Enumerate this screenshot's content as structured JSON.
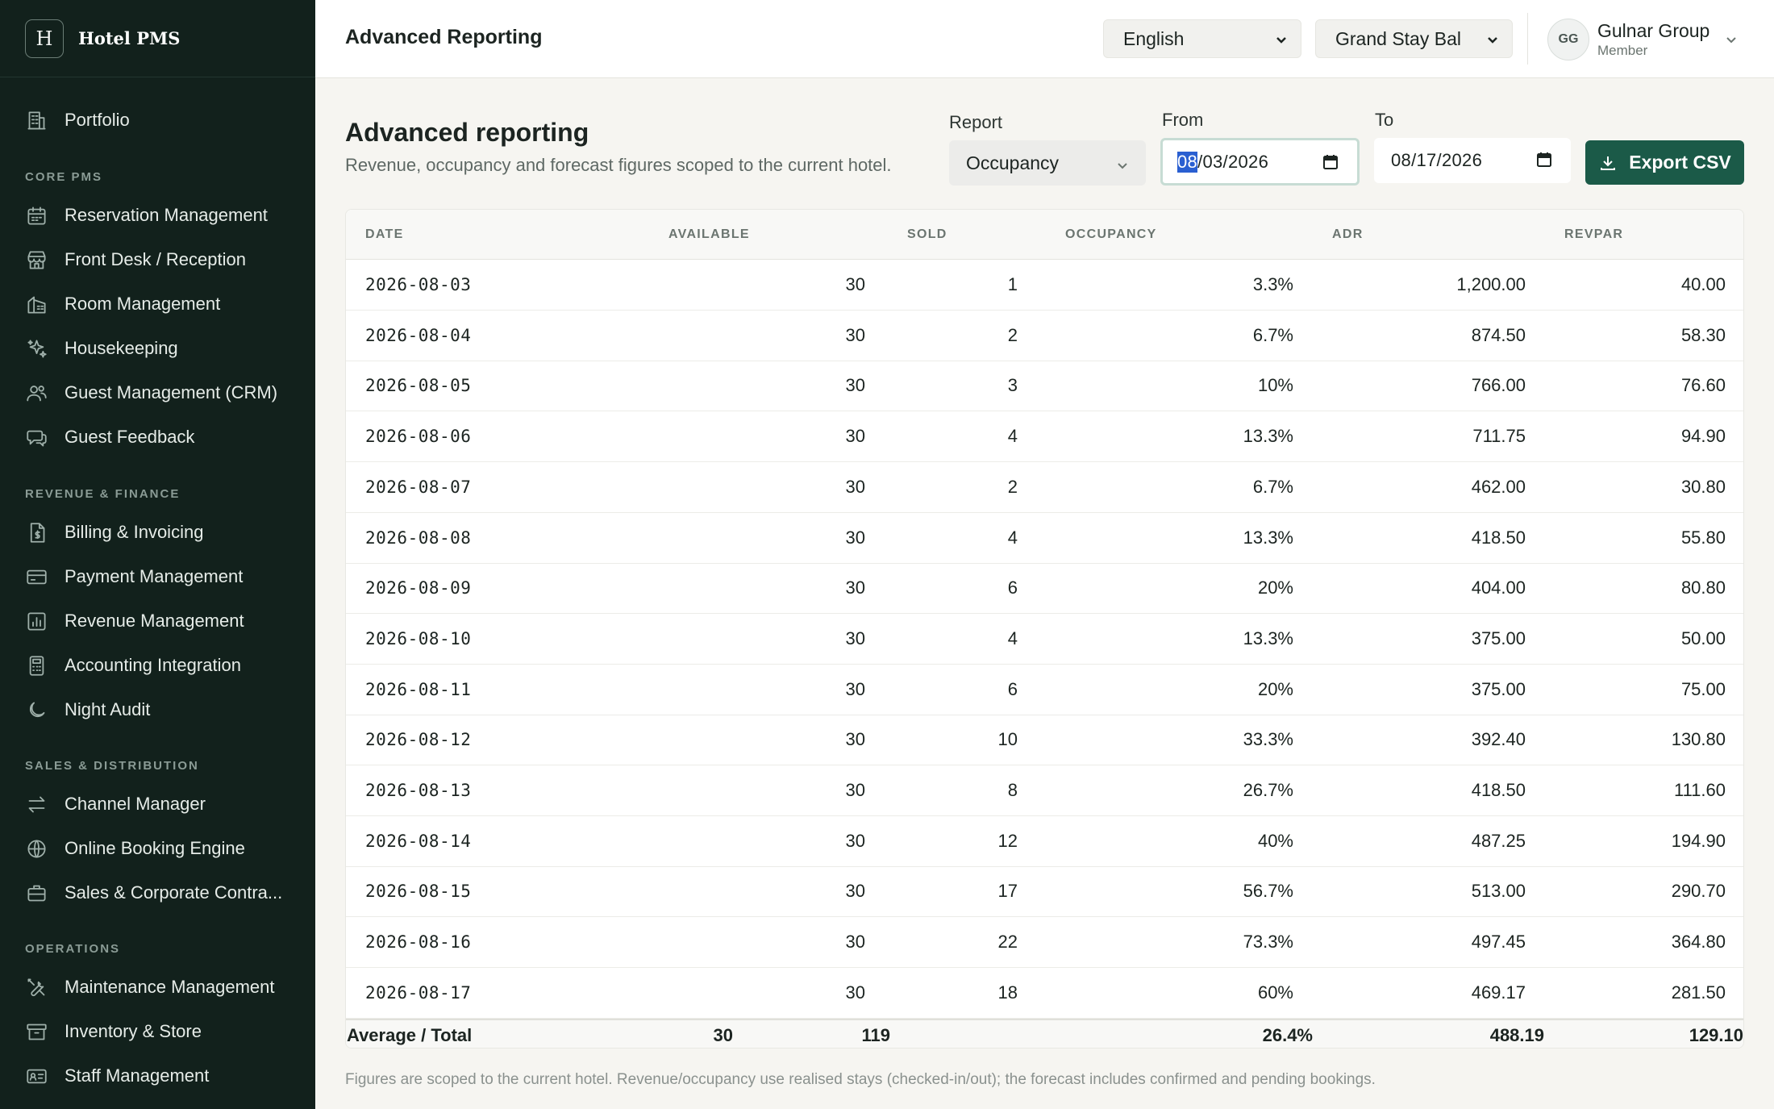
{
  "brand": {
    "logo_letter": "H",
    "name": "Hotel PMS"
  },
  "sidebar": {
    "portfolio": {
      "label": "Portfolio",
      "icon": "building-icon"
    },
    "sections": [
      {
        "title": "CORE PMS",
        "items": [
          {
            "label": "Reservation Management",
            "icon": "calendar-icon"
          },
          {
            "label": "Front Desk / Reception",
            "icon": "desk-icon"
          },
          {
            "label": "Room Management",
            "icon": "room-icon"
          },
          {
            "label": "Housekeeping",
            "icon": "sparkle-icon"
          },
          {
            "label": "Guest Management (CRM)",
            "icon": "users-icon"
          },
          {
            "label": "Guest Feedback",
            "icon": "chat-icon"
          }
        ]
      },
      {
        "title": "REVENUE & FINANCE",
        "items": [
          {
            "label": "Billing & Invoicing",
            "icon": "invoice-icon"
          },
          {
            "label": "Payment Management",
            "icon": "card-icon"
          },
          {
            "label": "Revenue Management",
            "icon": "bar-chart-icon"
          },
          {
            "label": "Accounting Integration",
            "icon": "calculator-icon"
          },
          {
            "label": "Night Audit",
            "icon": "moon-icon"
          }
        ]
      },
      {
        "title": "SALES & DISTRIBUTION",
        "items": [
          {
            "label": "Channel Manager",
            "icon": "arrows-icon"
          },
          {
            "label": "Online Booking Engine",
            "icon": "globe-icon"
          },
          {
            "label": "Sales & Corporate Contra...",
            "icon": "briefcase-icon"
          }
        ]
      },
      {
        "title": "OPERATIONS",
        "items": [
          {
            "label": "Maintenance Management",
            "icon": "tools-icon"
          },
          {
            "label": "Inventory & Store",
            "icon": "archive-icon"
          },
          {
            "label": "Staff Management",
            "icon": "id-card-icon"
          }
        ]
      }
    ]
  },
  "topbar": {
    "title": "Advanced Reporting",
    "language": "English",
    "hotel": "Grand Stay Bal",
    "user": {
      "initials": "GG",
      "name": "Gulnar Group",
      "role": "Member"
    }
  },
  "page": {
    "heading": "Advanced reporting",
    "subheading": "Revenue, occupancy and forecast figures scoped to the current hotel.",
    "report_label": "Report",
    "report_value": "Occupancy",
    "from_label": "From",
    "from_value_selected": "08",
    "from_value_rest": "/03/2026",
    "to_label": "To",
    "to_value": "08/17/2026",
    "export_label": "Export CSV"
  },
  "table": {
    "headers": [
      "DATE",
      "AVAILABLE",
      "SOLD",
      "OCCUPANCY",
      "ADR",
      "REVPAR"
    ],
    "rows": [
      [
        "2026-08-03",
        "30",
        "1",
        "3.3%",
        "1,200.00",
        "40.00"
      ],
      [
        "2026-08-04",
        "30",
        "2",
        "6.7%",
        "874.50",
        "58.30"
      ],
      [
        "2026-08-05",
        "30",
        "3",
        "10%",
        "766.00",
        "76.60"
      ],
      [
        "2026-08-06",
        "30",
        "4",
        "13.3%",
        "711.75",
        "94.90"
      ],
      [
        "2026-08-07",
        "30",
        "2",
        "6.7%",
        "462.00",
        "30.80"
      ],
      [
        "2026-08-08",
        "30",
        "4",
        "13.3%",
        "418.50",
        "55.80"
      ],
      [
        "2026-08-09",
        "30",
        "6",
        "20%",
        "404.00",
        "80.80"
      ],
      [
        "2026-08-10",
        "30",
        "4",
        "13.3%",
        "375.00",
        "50.00"
      ],
      [
        "2026-08-11",
        "30",
        "6",
        "20%",
        "375.00",
        "75.00"
      ],
      [
        "2026-08-12",
        "30",
        "10",
        "33.3%",
        "392.40",
        "130.80"
      ],
      [
        "2026-08-13",
        "30",
        "8",
        "26.7%",
        "418.50",
        "111.60"
      ],
      [
        "2026-08-14",
        "30",
        "12",
        "40%",
        "487.25",
        "194.90"
      ],
      [
        "2026-08-15",
        "30",
        "17",
        "56.7%",
        "513.00",
        "290.70"
      ],
      [
        "2026-08-16",
        "30",
        "22",
        "73.3%",
        "497.45",
        "364.80"
      ],
      [
        "2026-08-17",
        "30",
        "18",
        "60%",
        "469.17",
        "281.50"
      ]
    ],
    "totals": [
      "Average / Total",
      "30",
      "119",
      "26.4%",
      "488.19",
      "129.10"
    ]
  },
  "footnote": "Figures are scoped to the current hotel. Revenue/occupancy use realised stays (checked-in/out); the forecast includes confirmed and pending bookings.",
  "colors": {
    "sidebar_bg": "#12211c",
    "accent": "#1b5a48",
    "page_bg": "#f6f5f1"
  }
}
